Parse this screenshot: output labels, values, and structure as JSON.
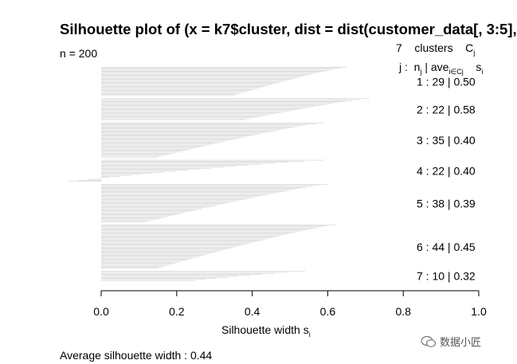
{
  "title": "Silhouette plot of (x = k7$cluster, dist = dist(customer_data[, 3:5],",
  "n_label": "n = 200",
  "avg_label": "Average silhouette width :  0.44",
  "header": {
    "k": "7",
    "clusters_word": "clusters",
    "C": "C",
    "C_sub": "j",
    "j_label": "j :",
    "n_label": "n",
    "n_sub": "j",
    "ave_label": "| ave",
    "ave_sub": "i∈Cj",
    "s_label": "s",
    "s_sub": "i"
  },
  "watermark": "数据小匠",
  "chart_data": {
    "type": "bar",
    "orientation": "horizontal",
    "xlabel": "Silhouette width s",
    "xlabel_sub": "i",
    "xlim": [
      0,
      1
    ],
    "xticks": [
      "0.0",
      "0.2",
      "0.4",
      "0.6",
      "0.8",
      "1.0"
    ],
    "clusters": [
      {
        "j": "1",
        "n": 29,
        "ave": "0.50",
        "min": 0.35,
        "max": 0.65
      },
      {
        "j": "2",
        "n": 22,
        "ave": "0.58",
        "min": 0.38,
        "max": 0.71
      },
      {
        "j": "3",
        "n": 35,
        "ave": "0.40",
        "min": 0.15,
        "max": 0.59
      },
      {
        "j": "4",
        "n": 22,
        "ave": "0.40",
        "min": -0.09,
        "max": 0.59
      },
      {
        "j": "5",
        "n": 38,
        "ave": "0.39",
        "min": 0.12,
        "max": 0.6
      },
      {
        "j": "6",
        "n": 44,
        "ave": "0.45",
        "min": 0.15,
        "max": 0.62
      },
      {
        "j": "7",
        "n": 10,
        "ave": "0.32",
        "min": 0.25,
        "max": 0.54
      }
    ],
    "bar_color": "#d6d6d6"
  }
}
